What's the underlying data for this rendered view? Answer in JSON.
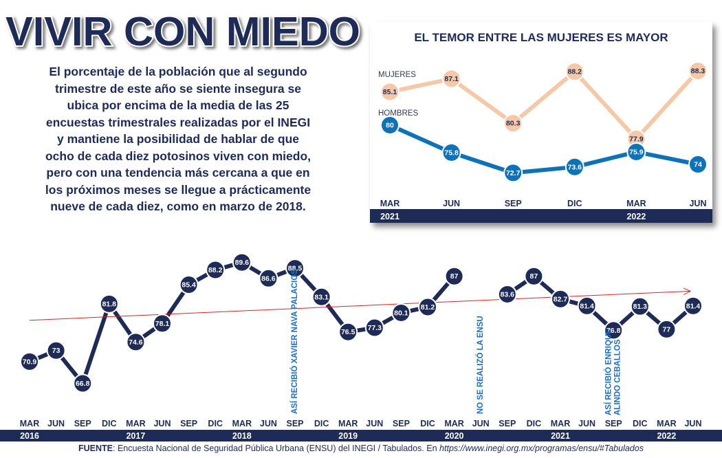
{
  "title": "VIVIR CON MIEDO",
  "description": "El porcentaje de la población que al segundo trimestre de este año se siente insegura se ubica por encima de la media de las 25 encuestas trimestrales realizadas por el INEGI y mantiene la posibilidad de hablar de que ocho de cada diez potosinos viven con miedo, pero con una tendencia más cercana a que en los próximos meses se llegue a prácticamente nueve de cada diez, como en marzo de 2018.",
  "description_lines": [
    "El porcentaje de la población que al segundo",
    "trimestre de este año se siente insegura se",
    "ubica por encima de la media de las 25",
    "encuestas trimestrales realizadas por el INEGI",
    "y mantiene la posibilidad de hablar de que",
    "ocho de cada diez potosinos viven con miedo,",
    "pero con una tendencia más cercana a que en",
    "los próximos meses se llegue a prácticamente",
    "nueve de cada diez, como en marzo de 2018."
  ],
  "source": {
    "label": "FUENTE",
    "text": ": Encuesta Nacional de Seguridad Pública Urbana (ENSU) del INEGI / Tabulados. En ",
    "url": "https://www.inegi.org.mx/programas/ensu/#Tabulados"
  },
  "colors": {
    "navy": "#1f2b57",
    "blue": "#0e72b8",
    "peach": "#f5c9a8",
    "trend": "#e31e24",
    "annotation": "#1d6fc3"
  },
  "chart_data": [
    {
      "type": "line",
      "title": "",
      "xlabel": "",
      "ylabel": "",
      "quarters": [
        "MAR",
        "JUN",
        "SEP",
        "DIC",
        "MAR",
        "JUN",
        "SEP",
        "DIC",
        "MAR",
        "JUN",
        "SEP",
        "DIC",
        "MAR",
        "JUN",
        "SEP",
        "DIC",
        "MAR",
        "JUN",
        "SEP",
        "DIC",
        "MAR",
        "JUN",
        "SEP",
        "DIC",
        "MAR",
        "JUN"
      ],
      "years": [
        {
          "label": "2016",
          "index": 0
        },
        {
          "label": "2017",
          "index": 4
        },
        {
          "label": "2018",
          "index": 8
        },
        {
          "label": "2019",
          "index": 12
        },
        {
          "label": "2020",
          "index": 16
        },
        {
          "label": "2021",
          "index": 20
        },
        {
          "label": "2022",
          "index": 24
        }
      ],
      "values": [
        70.9,
        73,
        66.8,
        81.8,
        74.6,
        78.1,
        85.4,
        88.2,
        89.6,
        86.6,
        88.5,
        83.1,
        76.5,
        77.3,
        80.1,
        81.2,
        87,
        null,
        83.6,
        87,
        82.7,
        81.4,
        76.8,
        81.3,
        77,
        81.4
      ],
      "value_labels": [
        "70.9",
        "73",
        "66.8",
        "81.8",
        "74.6",
        "78.1",
        "85.4",
        "88.2",
        "89.6",
        "86.6",
        "88.5",
        "83.1",
        "76.5",
        "77.3",
        "80.1",
        "81.2",
        "87",
        "",
        "83.6",
        "87",
        "82.7",
        "81.4",
        "76.8",
        "81.3",
        "77",
        "81.4"
      ],
      "ylim": [
        60,
        95
      ],
      "trend": {
        "start_index": 0,
        "end_index": 25,
        "start_value": 78.7,
        "end_value": 84.2
      },
      "annotations": [
        {
          "index": 10,
          "lines": [
            "ASÍ RECIBIÓ XAVIER NAVA PALACIOS"
          ]
        },
        {
          "index": 17,
          "lines": [
            "NO SE REALIZÓ LA ENSU"
          ]
        },
        {
          "index": 22,
          "lines": [
            "ASÍ RECIBIÓ ENRIQUE",
            "ALINDO CEBALLOS"
          ]
        }
      ]
    },
    {
      "type": "line",
      "title": "EL TEMOR ENTRE LAS MUJERES ES MAYOR",
      "xlabel": "",
      "ylabel": "",
      "categories": [
        "MAR",
        "JUN",
        "SEP",
        "DIC",
        "MAR",
        "JUN"
      ],
      "years": [
        {
          "label": "2021",
          "index": 0
        },
        {
          "label": "2022",
          "index": 4
        }
      ],
      "series": [
        {
          "name": "MUJERES",
          "values": [
            85.1,
            87.1,
            80.3,
            88.2,
            77.9,
            88.3
          ],
          "labels": [
            "85.1",
            "87.1",
            "80.3",
            "88.2",
            "77.9",
            "88.3"
          ]
        },
        {
          "name": "HOMBRES",
          "values": [
            80,
            75.8,
            72.7,
            73.6,
            75.9,
            74
          ],
          "labels": [
            "80",
            "75.8",
            "72.7",
            "73.6",
            "75.9",
            "74"
          ]
        }
      ],
      "ylim": [
        70,
        90
      ]
    }
  ]
}
